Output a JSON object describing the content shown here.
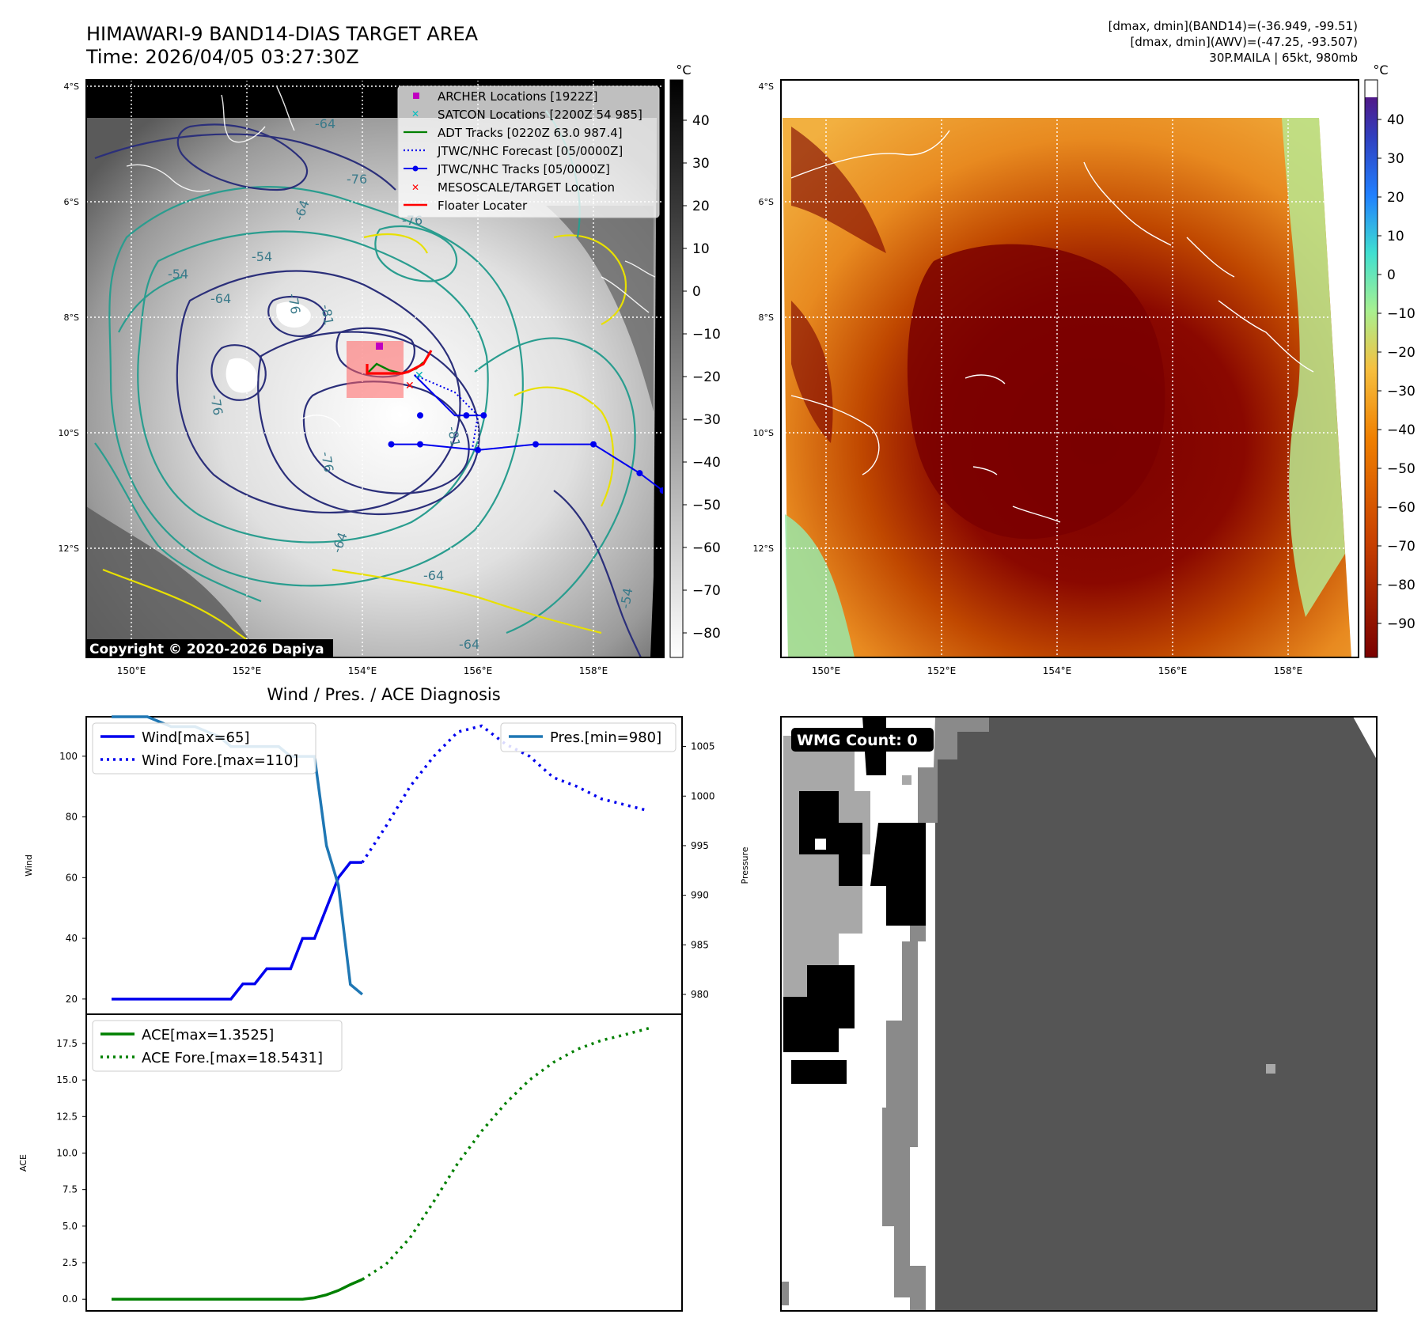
{
  "header": {
    "title": "HIMAWARI-9 BAND14-DIAS TARGET AREA",
    "time": "Time: 2026/04/05 03:27:30Z",
    "info_line1": "[dmax, dmin](BAND14)=(-36.949, -99.51)",
    "info_line2": "[dmax, dmin](AWV)=(-47.25, -93.507)",
    "info_line3": "30P.MAILA | 65kt, 980mb"
  },
  "colors": {
    "wind": "#0000ee",
    "pressure": "#1f77b4",
    "ace": "#008000",
    "floater": "#ff0000",
    "archer": "#c000c0",
    "satcon": "#00c0c0",
    "contour_dark": "#2b2f7a",
    "contour_teal": "#2a9d8f",
    "contour_yellow": "#e8e000"
  },
  "map": {
    "lon_labels": [
      "150°E",
      "152°E",
      "154°E",
      "156°E",
      "158°E"
    ],
    "lat_labels": [
      "4°S",
      "6°S",
      "8°S",
      "10°S",
      "12°S"
    ],
    "contour_labels": [
      "-64",
      "-76",
      "-76",
      "-64",
      "-54",
      "-54",
      "-64",
      "-81",
      "-76",
      "-76",
      "-81",
      "-76",
      "-64",
      "-54",
      "-64",
      "-64"
    ],
    "copyright": "Copyright © 2020-2026 Dapiya",
    "legend": [
      {
        "label": "ARCHER Locations [1922Z]",
        "marker": "square-icon"
      },
      {
        "label": "SATCON Locations [2200Z 54 985]",
        "marker": "x-icon"
      },
      {
        "label": "ADT Tracks [0220Z 63.0 987.4]",
        "marker": "line-icon"
      },
      {
        "label": "JTWC/NHC Forecast [05/0000Z]",
        "marker": "dotted-line-icon"
      },
      {
        "label": "JTWC/NHC Tracks [05/0000Z]",
        "marker": "line-dot-icon"
      },
      {
        "label": "MESOSCALE/TARGET Location",
        "marker": "x-icon"
      },
      {
        "label": "Floater Locater",
        "marker": "line-icon"
      }
    ],
    "colorbar_unit": "°C",
    "colorbar_ticks": [
      "40",
      "30",
      "20",
      "10",
      "0",
      "−10",
      "−20",
      "−30",
      "−40",
      "−50",
      "−60",
      "−70",
      "−80"
    ],
    "track_history": [
      [
        154.5,
        10.2
      ],
      [
        155.0,
        10.2
      ],
      [
        156.0,
        10.3
      ],
      [
        157.0,
        10.2
      ],
      [
        158.0,
        10.2
      ],
      [
        158.8,
        10.7
      ],
      [
        159.2,
        11.0
      ]
    ],
    "forecast_track": [
      [
        154.9,
        9.0
      ],
      [
        155.6,
        9.3
      ],
      [
        156.0,
        9.7
      ],
      [
        155.9,
        10.3
      ]
    ],
    "forecast_points": [
      [
        155.0,
        9.7
      ],
      [
        156.1,
        9.7
      ],
      [
        155.8,
        9.7
      ]
    ]
  },
  "awv": {
    "lon_labels": [
      "150°E",
      "152°E",
      "154°E",
      "156°E",
      "158°E"
    ],
    "lat_labels": [
      "4°S",
      "6°S",
      "8°S",
      "10°S",
      "12°S"
    ],
    "colorbar_unit": "°C",
    "colorbar_ticks": [
      "40",
      "30",
      "20",
      "10",
      "0",
      "−10",
      "−20",
      "−30",
      "−40",
      "−50",
      "−60",
      "−70",
      "−80",
      "−90"
    ]
  },
  "wmg": {
    "badge": "WMG Count: 0"
  },
  "chart_data": [
    {
      "type": "line",
      "title": "Wind / Pres. / ACE Diagnosis",
      "xlabel": "",
      "ylabel": "Wind",
      "ylabel_right": "Pressure",
      "ylim": [
        15,
        113
      ],
      "ylim_right": [
        978,
        1008
      ],
      "yticks": [
        20,
        40,
        60,
        80,
        100
      ],
      "yticks_right": [
        980,
        985,
        990,
        995,
        1000,
        1005
      ],
      "series": [
        {
          "name": "Wind[max=65]",
          "axis": "left",
          "style": "solid",
          "x": [
            0,
            10,
            11,
            12,
            13,
            14,
            15,
            16,
            17,
            18,
            19,
            20,
            21
          ],
          "values": [
            20,
            20,
            25,
            25,
            30,
            30,
            30,
            40,
            40,
            50,
            60,
            65,
            65
          ]
        },
        {
          "name": "Wind Fore.[max=110]",
          "axis": "left",
          "style": "dotted",
          "x": [
            21,
            23,
            25,
            27,
            29,
            31,
            33,
            35,
            37,
            39,
            41,
            43,
            45
          ],
          "values": [
            65,
            77,
            90,
            100,
            108,
            110,
            104,
            100,
            93,
            90,
            86,
            84,
            82
          ]
        },
        {
          "name": "Pres.[min=980]",
          "axis": "right",
          "style": "solid",
          "x": [
            0,
            3,
            5,
            7,
            9,
            10,
            12,
            14,
            15,
            17,
            18,
            19,
            20,
            21
          ],
          "values": [
            1008,
            1008,
            1007,
            1007,
            1006,
            1005,
            1005,
            1005,
            1004,
            1004,
            995,
            991,
            981,
            980
          ]
        }
      ]
    },
    {
      "type": "line",
      "xlabel": "",
      "ylabel": "ACE",
      "ylim": [
        -0.8,
        19.5
      ],
      "yticks": [
        0.0,
        2.5,
        5.0,
        7.5,
        10.0,
        12.5,
        15.0,
        17.5
      ],
      "ytick_labels": [
        "0.0",
        "2.5",
        "5.0",
        "7.5",
        "10.0",
        "12.5",
        "15.0",
        "17.5"
      ],
      "series": [
        {
          "name": "ACE[max=1.3525]",
          "style": "solid",
          "x": [
            0,
            16,
            17,
            18,
            19,
            20,
            21
          ],
          "values": [
            0,
            0,
            0.1,
            0.3,
            0.6,
            1.0,
            1.35
          ]
        },
        {
          "name": "ACE Fore.[max=18.5431]",
          "style": "dotted",
          "x": [
            21,
            23,
            25,
            27,
            29,
            31,
            33,
            35,
            37,
            39,
            41,
            43,
            45
          ],
          "values": [
            1.35,
            2.4,
            4.2,
            6.7,
            9.3,
            11.5,
            13.4,
            15.0,
            16.2,
            17.1,
            17.7,
            18.1,
            18.54
          ]
        }
      ]
    }
  ]
}
